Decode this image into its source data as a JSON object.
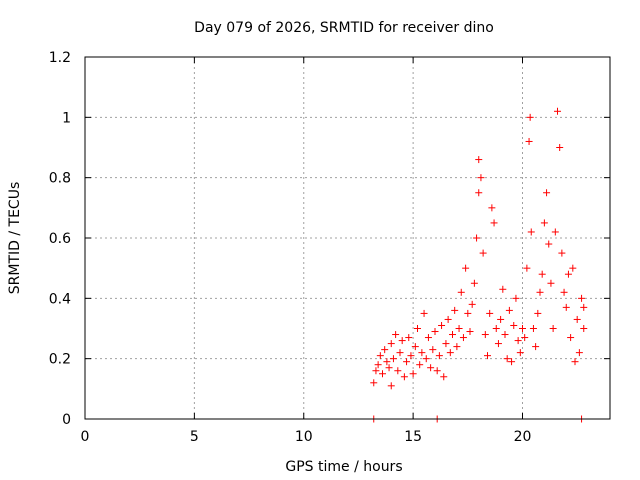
{
  "chart_data": {
    "type": "scatter",
    "title": "Day 079 of 2026, SRMTID for receiver dino",
    "xlabel": "GPS time / hours",
    "ylabel": "SRMTID / TECUs",
    "xlim": [
      0,
      24
    ],
    "ylim": [
      0,
      1.2
    ],
    "xticks": [
      0,
      5,
      10,
      15,
      20
    ],
    "xtick_labels": [
      "0",
      "5",
      "10",
      "15",
      "20"
    ],
    "yticks": [
      0,
      0.2,
      0.4,
      0.6,
      0.8,
      1.0,
      1.2
    ],
    "ytick_labels": [
      "0",
      "0.2",
      "0.4",
      "0.6",
      "0.8",
      "1",
      "1.2"
    ],
    "grid": true,
    "marker": "+",
    "color": "#ff0000",
    "series": [
      {
        "name": "SRMTID",
        "points": [
          [
            13.2,
            0.0
          ],
          [
            16.1,
            0.0
          ],
          [
            22.7,
            0.0
          ],
          [
            13.2,
            0.12
          ],
          [
            13.3,
            0.16
          ],
          [
            13.4,
            0.18
          ],
          [
            13.5,
            0.21
          ],
          [
            13.6,
            0.15
          ],
          [
            13.7,
            0.23
          ],
          [
            13.8,
            0.19
          ],
          [
            13.9,
            0.17
          ],
          [
            14.0,
            0.11
          ],
          [
            14.0,
            0.25
          ],
          [
            14.1,
            0.2
          ],
          [
            14.2,
            0.28
          ],
          [
            14.3,
            0.16
          ],
          [
            14.4,
            0.22
          ],
          [
            14.5,
            0.26
          ],
          [
            14.6,
            0.14
          ],
          [
            14.7,
            0.19
          ],
          [
            14.8,
            0.27
          ],
          [
            14.9,
            0.21
          ],
          [
            15.0,
            0.15
          ],
          [
            15.1,
            0.24
          ],
          [
            15.2,
            0.3
          ],
          [
            15.3,
            0.18
          ],
          [
            15.4,
            0.22
          ],
          [
            15.5,
            0.35
          ],
          [
            15.6,
            0.2
          ],
          [
            15.7,
            0.27
          ],
          [
            15.8,
            0.17
          ],
          [
            15.9,
            0.23
          ],
          [
            16.0,
            0.29
          ],
          [
            16.1,
            0.16
          ],
          [
            16.2,
            0.21
          ],
          [
            16.3,
            0.31
          ],
          [
            16.4,
            0.14
          ],
          [
            16.5,
            0.25
          ],
          [
            16.6,
            0.33
          ],
          [
            16.7,
            0.22
          ],
          [
            16.8,
            0.28
          ],
          [
            16.9,
            0.36
          ],
          [
            17.0,
            0.24
          ],
          [
            17.1,
            0.3
          ],
          [
            17.2,
            0.42
          ],
          [
            17.3,
            0.27
          ],
          [
            17.4,
            0.5
          ],
          [
            17.5,
            0.35
          ],
          [
            17.6,
            0.29
          ],
          [
            17.7,
            0.38
          ],
          [
            17.8,
            0.45
          ],
          [
            17.9,
            0.6
          ],
          [
            18.0,
            0.75
          ],
          [
            18.0,
            0.86
          ],
          [
            18.1,
            0.8
          ],
          [
            18.2,
            0.55
          ],
          [
            18.3,
            0.28
          ],
          [
            18.4,
            0.21
          ],
          [
            18.5,
            0.35
          ],
          [
            18.6,
            0.7
          ],
          [
            18.7,
            0.65
          ],
          [
            18.8,
            0.3
          ],
          [
            18.9,
            0.25
          ],
          [
            19.0,
            0.33
          ],
          [
            19.1,
            0.43
          ],
          [
            19.2,
            0.28
          ],
          [
            19.3,
            0.2
          ],
          [
            19.4,
            0.36
          ],
          [
            19.5,
            0.19
          ],
          [
            19.6,
            0.31
          ],
          [
            19.7,
            0.4
          ],
          [
            19.8,
            0.26
          ],
          [
            19.9,
            0.22
          ],
          [
            20.0,
            0.3
          ],
          [
            20.1,
            0.27
          ],
          [
            20.2,
            0.5
          ],
          [
            20.3,
            0.92
          ],
          [
            20.35,
            1.0
          ],
          [
            20.4,
            0.62
          ],
          [
            20.5,
            0.3
          ],
          [
            20.6,
            0.24
          ],
          [
            20.7,
            0.35
          ],
          [
            20.8,
            0.42
          ],
          [
            20.9,
            0.48
          ],
          [
            21.0,
            0.65
          ],
          [
            21.1,
            0.75
          ],
          [
            21.2,
            0.58
          ],
          [
            21.3,
            0.45
          ],
          [
            21.4,
            0.3
          ],
          [
            21.5,
            0.62
          ],
          [
            21.6,
            1.02
          ],
          [
            21.7,
            0.9
          ],
          [
            21.8,
            0.55
          ],
          [
            21.9,
            0.42
          ],
          [
            22.0,
            0.37
          ],
          [
            22.1,
            0.48
          ],
          [
            22.2,
            0.27
          ],
          [
            22.3,
            0.5
          ],
          [
            22.4,
            0.19
          ],
          [
            22.5,
            0.33
          ],
          [
            22.6,
            0.22
          ],
          [
            22.7,
            0.4
          ],
          [
            22.8,
            0.3
          ],
          [
            22.8,
            0.37
          ]
        ]
      }
    ]
  }
}
